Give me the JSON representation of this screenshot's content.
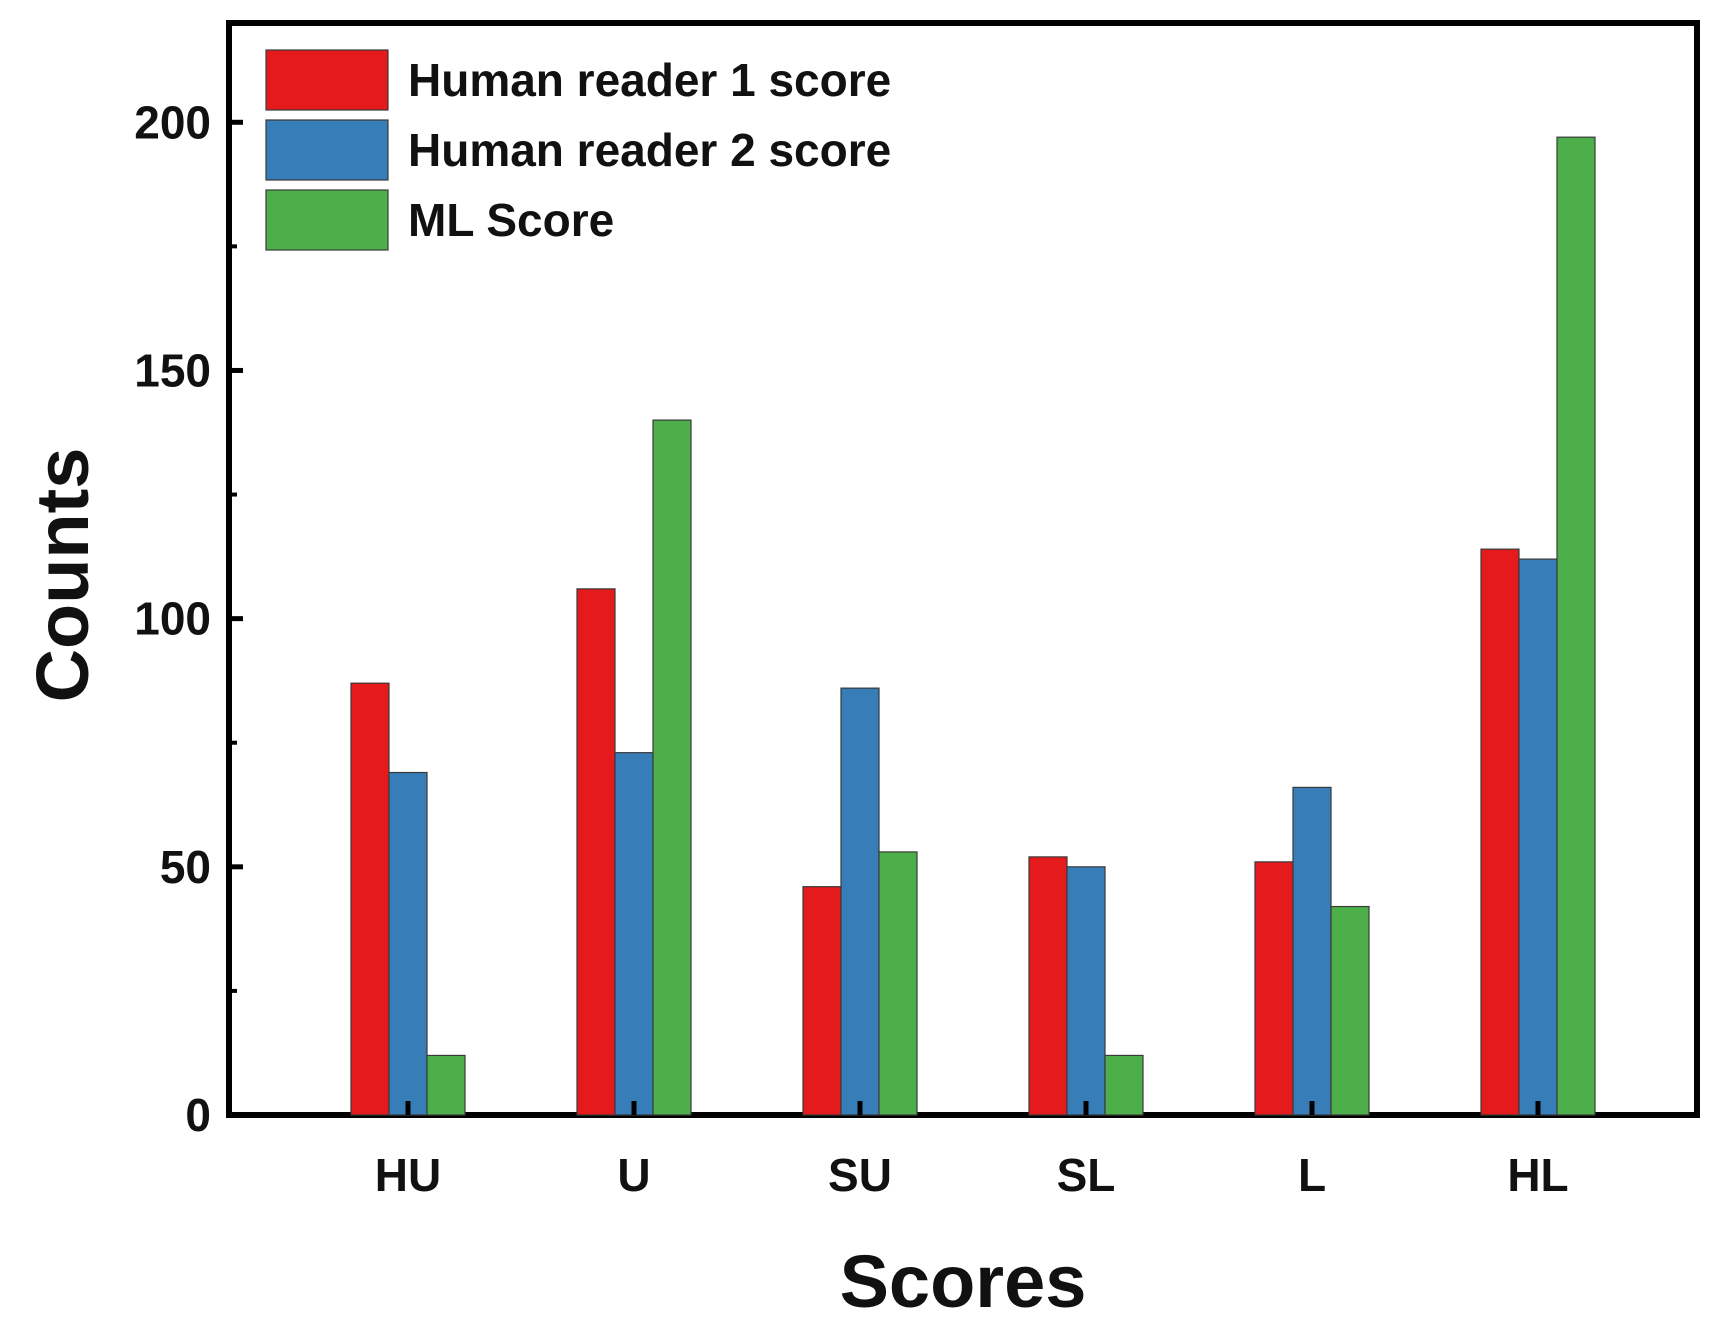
{
  "chart_data": {
    "type": "bar",
    "categories": [
      "HU",
      "U",
      "SU",
      "SL",
      "L",
      "HL"
    ],
    "series": [
      {
        "name": "Human reader 1 score",
        "color": "#e41a1c",
        "values": [
          87,
          106,
          46,
          52,
          51,
          114
        ]
      },
      {
        "name": "Human reader 2 score",
        "color": "#377eb8",
        "values": [
          69,
          73,
          86,
          50,
          66,
          112
        ]
      },
      {
        "name": "ML Score",
        "color": "#4daf4a",
        "values": [
          12,
          140,
          53,
          12,
          42,
          197
        ]
      }
    ],
    "xlabel": "Scores",
    "ylabel": "Counts",
    "ylim": [
      0,
      220
    ],
    "yticks": [
      0,
      50,
      100,
      150,
      200
    ],
    "grid": false,
    "legend_position": "top-left"
  }
}
